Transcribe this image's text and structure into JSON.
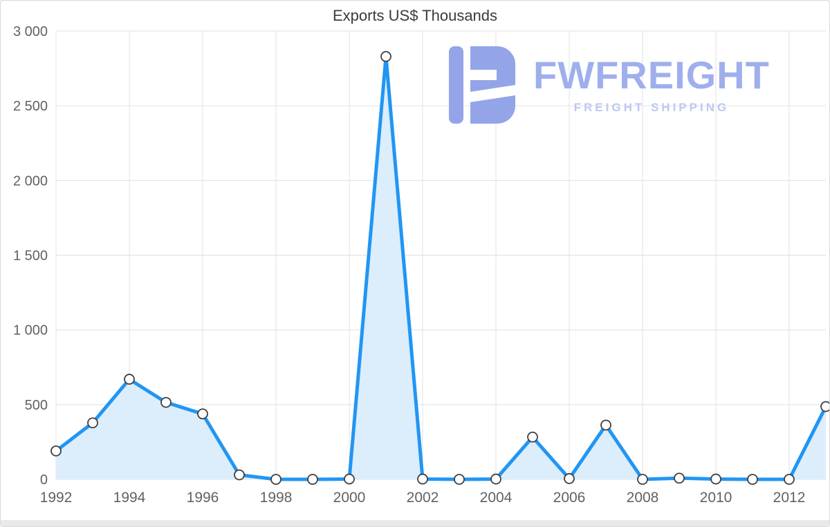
{
  "chart_data": {
    "type": "area",
    "title": "Exports US$ Thousands",
    "xlabel": "",
    "ylabel": "",
    "x": [
      1992,
      1993,
      1994,
      1995,
      1996,
      1997,
      1998,
      1999,
      2000,
      2001,
      2002,
      2003,
      2004,
      2005,
      2006,
      2007,
      2008,
      2009,
      2010,
      2011,
      2012,
      2013
    ],
    "series": [
      {
        "name": "Exports US$ Thousands",
        "values": [
          190,
          378,
          670,
          515,
          438,
          30,
          0,
          0,
          2,
          2830,
          2,
          0,
          2,
          283,
          5,
          363,
          0,
          8,
          2,
          0,
          0,
          487
        ]
      }
    ],
    "xlim": [
      1992,
      2013
    ],
    "ylim": [
      0,
      3000
    ],
    "xticks": [
      1992,
      1994,
      1996,
      1998,
      2000,
      2002,
      2004,
      2006,
      2008,
      2010,
      2012
    ],
    "yticks": {
      "values": [
        0,
        500,
        1000,
        1500,
        2000,
        2500,
        3000
      ],
      "labels": [
        "0",
        "500",
        "1 000",
        "1 500",
        "2 000",
        "2 500",
        "3 000"
      ]
    },
    "grid": true,
    "legend": "none",
    "colors": {
      "line": "#2196F3",
      "area": "#DCEDFC",
      "point_fill": "#FFFFFF",
      "point_stroke": "#3F3F3F",
      "gridline": "#E0E0E0",
      "tick_text": "#616161",
      "title_text": "#3B3B3B"
    }
  },
  "watermark": {
    "brand": "FWFREIGHT",
    "tagline": "FREIGHT SHIPPING",
    "brand_color": "#9FAFED",
    "tagline_color": "#BDC8F4",
    "icon_color": "#93A4E9",
    "icon": "fwfreight-logo"
  }
}
